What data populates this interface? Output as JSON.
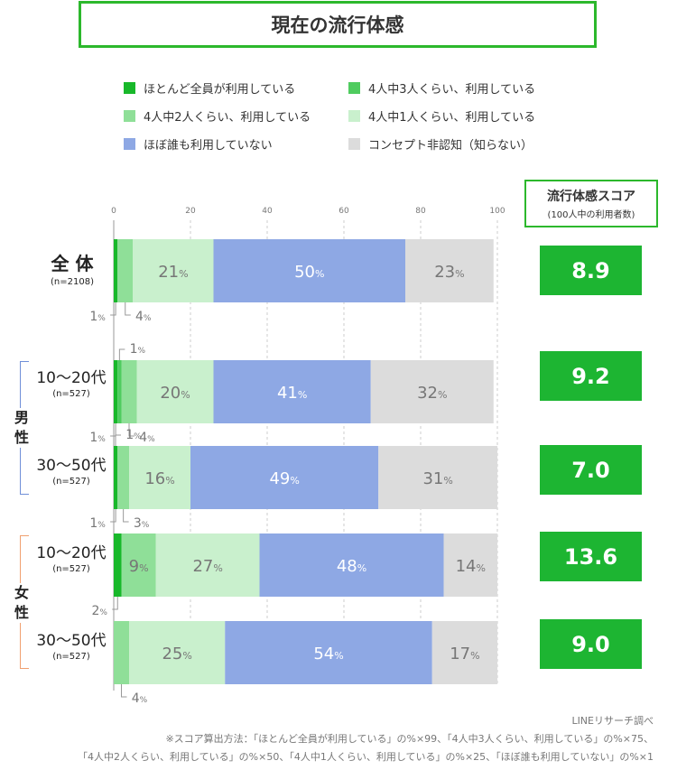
{
  "title": "現在の流行体感",
  "legend": [
    {
      "label": "ほとんど全員が利用している",
      "color": "#18b82a"
    },
    {
      "label": "4人中3人くらい、利用している",
      "color": "#4fcc5f"
    },
    {
      "label": "4人中2人くらい、利用している",
      "color": "#8fdf98"
    },
    {
      "label": "4人中1人くらい、利用している",
      "color": "#c9f0cd"
    },
    {
      "label": "ほぼ誰も利用していない",
      "color": "#8ea8e4"
    },
    {
      "label": "コンセプト非認知（知らない）",
      "color": "#dcdcdc"
    }
  ],
  "score_header": {
    "title": "流行体感スコア",
    "subtitle": "(100人中の利用者数)"
  },
  "rows": [
    {
      "label": "全 体",
      "n": "(n=2108)",
      "score": "8.9"
    },
    {
      "label": "10〜20代",
      "n": "(n=527)",
      "score": "9.2"
    },
    {
      "label": "30〜50代",
      "n": "(n=527)",
      "score": "7.0"
    },
    {
      "label": "10〜20代",
      "n": "(n=527)",
      "score": "13.6"
    },
    {
      "label": "30〜50代",
      "n": "(n=527)",
      "score": "9.0"
    }
  ],
  "groups": [
    {
      "label": "男性",
      "color": "#6f8fd8"
    },
    {
      "label": "女性",
      "color": "#f0a070"
    }
  ],
  "chart_data": {
    "type": "bar",
    "orientation": "horizontal",
    "stacked": true,
    "xlim": [
      0,
      100
    ],
    "xticks": [
      "0",
      "20",
      "40",
      "60",
      "80",
      "100"
    ],
    "categories": [
      "全体",
      "男性 10〜20代",
      "男性 30〜50代",
      "女性 10〜20代",
      "女性 30〜50代"
    ],
    "series": [
      {
        "name": "ほとんど全員が利用している",
        "values": [
          1,
          1,
          1,
          2,
          0
        ],
        "color": "#18b82a"
      },
      {
        "name": "4人中3人くらい、利用している",
        "values": [
          0,
          1,
          0,
          0,
          0
        ],
        "color": "#4fcc5f"
      },
      {
        "name": "4人中2人くらい、利用している",
        "values": [
          4,
          4,
          3,
          9,
          4
        ],
        "color": "#8fdf98"
      },
      {
        "name": "4人中1人くらい、利用している",
        "values": [
          21,
          20,
          16,
          27,
          25
        ],
        "color": "#c9f0cd"
      },
      {
        "name": "ほぼ誰も利用していない",
        "values": [
          50,
          41,
          49,
          48,
          54
        ],
        "color": "#8ea8e4"
      },
      {
        "name": "コンセプト非認知（知らない）",
        "values": [
          23,
          32,
          31,
          14,
          17
        ],
        "color": "#dcdcdc"
      }
    ],
    "label_unit": "%"
  },
  "footer": {
    "source": "LINEリサーチ調べ",
    "note1": "※スコア算出方法：「ほとんど全員が利用している」の%×99、「4人中3人くらい、利用している」の%×75、",
    "note2": "「4人中2人くらい、利用している」の%×50、「4人中1人くらい、利用している」の%×25、「ほぼ誰も利用していない」の%×1"
  }
}
